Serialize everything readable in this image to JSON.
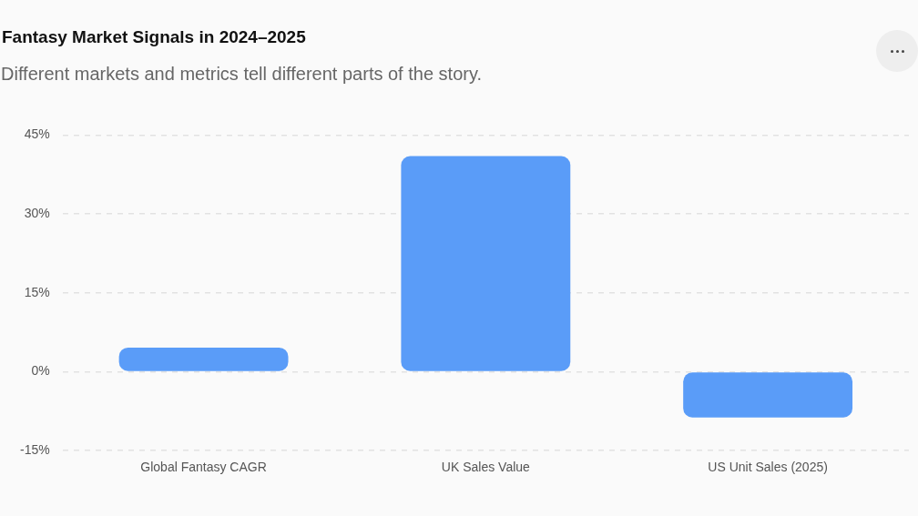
{
  "chart_data": {
    "type": "bar",
    "title": "Fantasy Market Signals in 2024–2025",
    "subtitle": "Different markets and metrics tell different parts of the story.",
    "categories": [
      "Global Fantasy CAGR",
      "UK Sales Value",
      "US Unit Sales (2025)"
    ],
    "values": [
      4.6,
      41,
      -8.7
    ],
    "color": "#5a9cf8",
    "ylim": [
      -15,
      45
    ],
    "yticks": [
      {
        "value": -15,
        "label": "-15%"
      },
      {
        "value": 0,
        "label": "0%"
      },
      {
        "value": 15,
        "label": "15%"
      },
      {
        "value": 30,
        "label": "30%"
      },
      {
        "value": 45,
        "label": "45%"
      }
    ],
    "grid": "y"
  }
}
